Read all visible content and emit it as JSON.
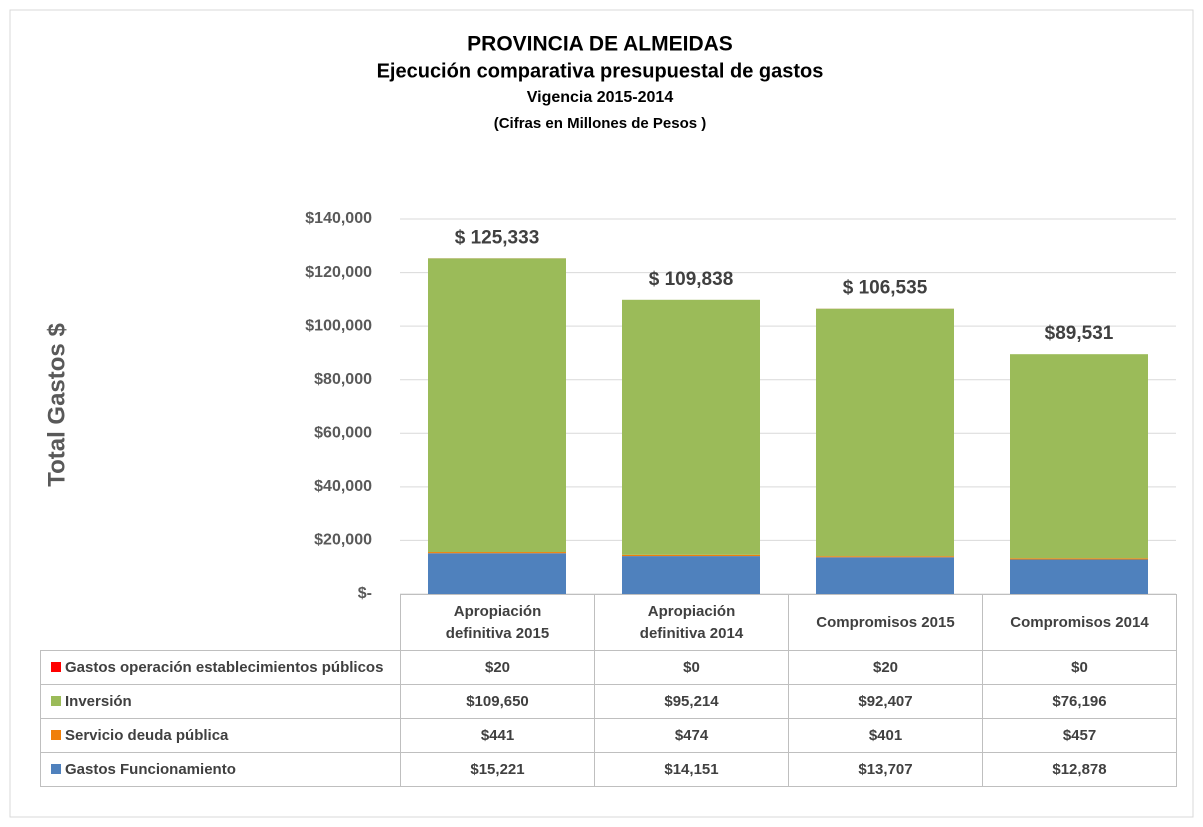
{
  "chart_data": {
    "type": "stacked_bar",
    "title": "PROVINCIA DE  ALMEIDAS",
    "subtitle": "Ejecución comparativa presupuestal de gastos",
    "subtitle2": "Vigencia 2015-2014",
    "subtitle3": "(Cifras en Millones de Pesos )",
    "y_label": "Total Gastos $",
    "categories": [
      "Apropiación definitiva 2015",
      "Apropiación definitiva 2014",
      "Compromisos 2015",
      "Compromisos 2014"
    ],
    "series": [
      {
        "name": "Gastos Funcionamiento",
        "color": "#4f81bd",
        "values": [
          15221,
          14151,
          13707,
          12878
        ],
        "value_labels": [
          "$15,221",
          "$14,151",
          "$13,707",
          "$12,878"
        ]
      },
      {
        "name": "Servicio deuda pública",
        "color": "#f07f09",
        "values": [
          441,
          474,
          401,
          457
        ],
        "value_labels": [
          "$441",
          "$474",
          "$401",
          "$457"
        ]
      },
      {
        "name": "Inversión",
        "color": "#9bbb59",
        "values": [
          109650,
          95214,
          92407,
          76196
        ],
        "value_labels": [
          "$109,650",
          "$95,214",
          "$92,407",
          "$76,196"
        ]
      },
      {
        "name": "Gastos operación establecimientos públicos",
        "color": "#ff0000",
        "values": [
          20,
          0,
          20,
          0
        ],
        "value_labels": [
          "$20",
          "$0",
          "$20",
          "$0"
        ]
      }
    ],
    "totals": [
      125333,
      109838,
      106535,
      89531
    ],
    "total_labels": [
      "$ 125,333",
      "$ 109,838",
      "$ 106,535",
      "$89,531"
    ],
    "ylim": [
      0,
      140000
    ],
    "yticks": [
      {
        "value": 0,
        "label": "$-"
      },
      {
        "value": 20000,
        "label": "$20,000"
      },
      {
        "value": 40000,
        "label": "$40,000"
      },
      {
        "value": 60000,
        "label": "$60,000"
      },
      {
        "value": 80000,
        "label": "$80,000"
      },
      {
        "value": 100000,
        "label": "$100,000"
      },
      {
        "value": 120000,
        "label": "$120,000"
      },
      {
        "value": 140000,
        "label": "$140,000"
      }
    ],
    "grid": true
  }
}
